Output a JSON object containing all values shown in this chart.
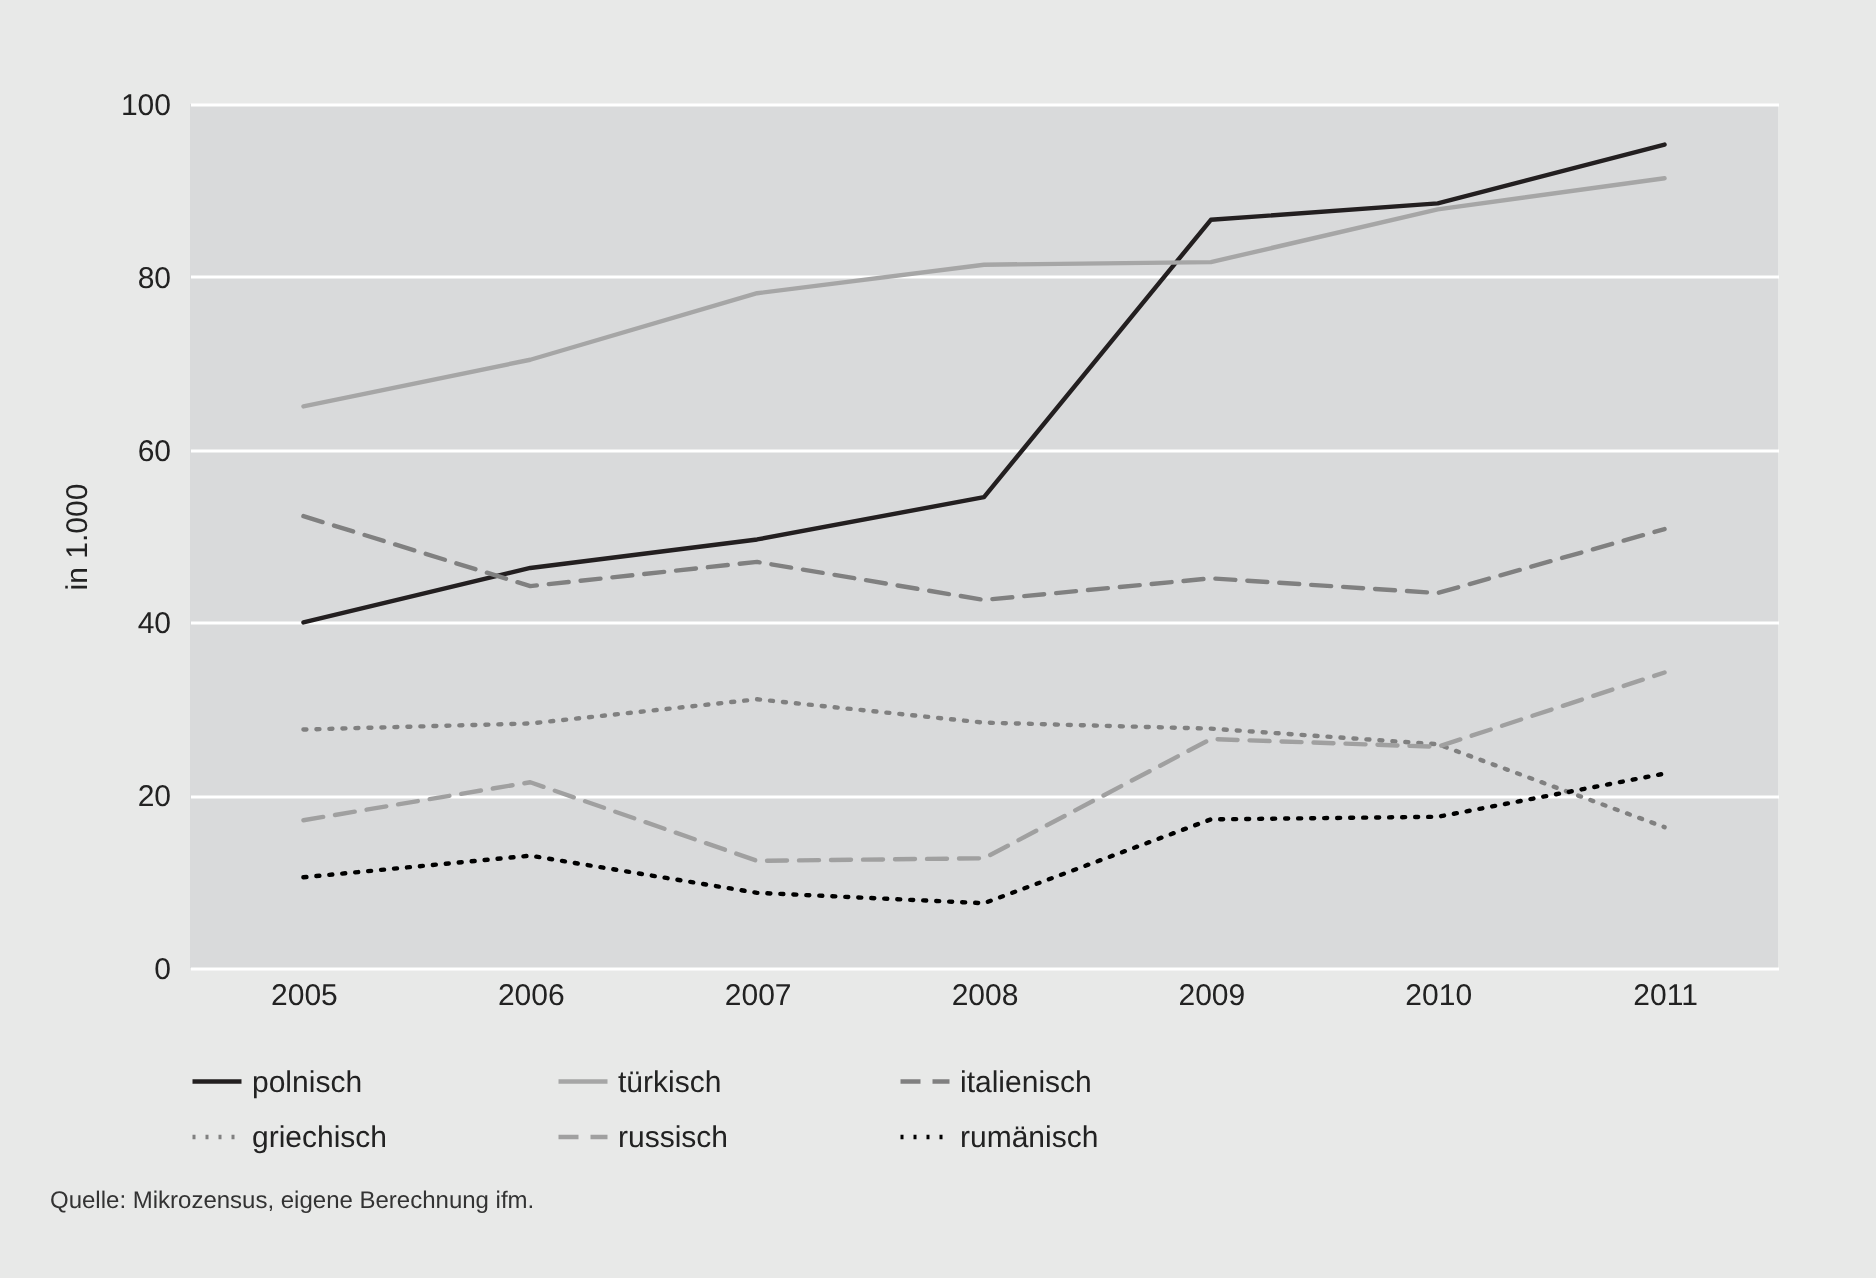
{
  "chart_data": {
    "type": "line",
    "ylabel": "in 1.000",
    "categories": [
      "2005",
      "2006",
      "2007",
      "2008",
      "2009",
      "2010",
      "2011"
    ],
    "series": [
      {
        "name": "polnisch",
        "color": "#231f20",
        "line_style": "solid",
        "values": [
          40,
          46.3,
          49.6,
          54.5,
          86.6,
          88.5,
          95.3
        ]
      },
      {
        "name": "türkisch",
        "color": "#a6a6a6",
        "line_style": "solid",
        "values": [
          65,
          70.4,
          78.1,
          81.4,
          81.7,
          87.8,
          91.4
        ]
      },
      {
        "name": "italienisch",
        "color": "#808080",
        "line_style": "dashed",
        "values": [
          52.3,
          44.2,
          47,
          42.6,
          45.1,
          43.4,
          50.8
        ]
      },
      {
        "name": "griechisch",
        "color": "#808080",
        "line_style": "dotted",
        "values": [
          27.6,
          28.3,
          31.1,
          28.4,
          27.7,
          25.9,
          16.3
        ]
      },
      {
        "name": "russisch",
        "color": "#a0a0a0",
        "line_style": "dashed",
        "values": [
          17.1,
          21.5,
          12.4,
          12.7,
          26.5,
          25.6,
          34.2
        ]
      },
      {
        "name": "rumänisch",
        "color": "#000000",
        "line_style": "dotted",
        "values": [
          10.5,
          13,
          8.7,
          7.5,
          17.2,
          17.5,
          22.5
        ]
      }
    ],
    "ylim": [
      0,
      100
    ],
    "yticks": [
      0,
      20,
      40,
      60,
      80,
      100
    ],
    "grid": "y",
    "legend": "bottom",
    "marker": "none",
    "annotations": [
      "Quelle: Mikrozensus, eigene Berechnung ifm."
    ]
  }
}
